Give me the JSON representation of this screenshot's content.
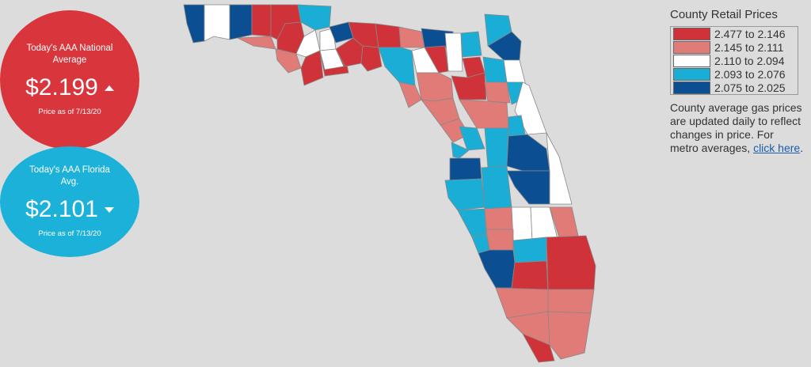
{
  "national": {
    "label": "Today's AAA National Average",
    "price": "$2.199",
    "trend": "up",
    "as_of": "Price as of 7/13/20",
    "color": "#d9353c"
  },
  "florida": {
    "label": "Today's AAA Florida Avg.",
    "price": "$2.101",
    "trend": "down",
    "as_of": "Price as of 7/13/20",
    "color": "#1bb1d9"
  },
  "legend": {
    "title": "County Retail Prices",
    "items": [
      {
        "range": "2.477 to 2.146",
        "color": "#cf3339"
      },
      {
        "range": "2.145 to 2.111",
        "color": "#e07b78"
      },
      {
        "range": "2.110 to 2.094",
        "color": "#ffffff"
      },
      {
        "range": "2.093 to 2.076",
        "color": "#1aaed6"
      },
      {
        "range": "2.075 to 2.025",
        "color": "#0b4f92"
      }
    ],
    "note": "County average gas prices are updated daily to reflect changes in price. For metro averages,",
    "link_text": "click here",
    "note_end": "."
  }
}
